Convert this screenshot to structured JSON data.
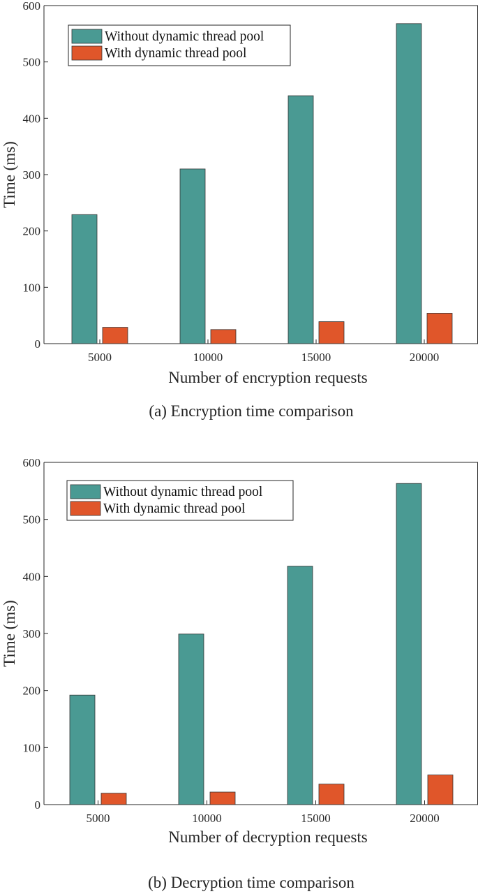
{
  "chart_data": [
    {
      "type": "bar",
      "categories": [
        "5000",
        "10000",
        "15000",
        "20000"
      ],
      "series": [
        {
          "name": "Without dynamic thread pool",
          "values": [
            229,
            310,
            440,
            568
          ]
        },
        {
          "name": "With dynamic thread pool",
          "values": [
            29,
            25,
            39,
            54
          ]
        }
      ],
      "xlabel": "Number of encryption requests",
      "ylabel": "Time (ms)",
      "ylim": [
        0,
        600
      ],
      "yticks": [
        "0",
        "100",
        "200",
        "300",
        "400",
        "500",
        "600"
      ],
      "legend_position": "top-left",
      "grid": false,
      "caption": "(a) Encryption time comparison"
    },
    {
      "type": "bar",
      "categories": [
        "5000",
        "10000",
        "15000",
        "20000"
      ],
      "series": [
        {
          "name": "Without dynamic thread pool",
          "values": [
            192,
            299,
            418,
            563
          ]
        },
        {
          "name": "With dynamic thread pool",
          "values": [
            20,
            22,
            36,
            52
          ]
        }
      ],
      "xlabel": "Number of decryption requests",
      "ylabel": "Time (ms)",
      "ylim": [
        0,
        600
      ],
      "yticks": [
        "0",
        "100",
        "200",
        "300",
        "400",
        "500",
        "600"
      ],
      "legend_position": "top-left",
      "grid": false,
      "caption": "(b) Decryption time comparison"
    }
  ],
  "colors": {
    "series": [
      "#4a9a93",
      "#e0562a"
    ],
    "axis": "#262626",
    "bar_edge": "#333333"
  }
}
